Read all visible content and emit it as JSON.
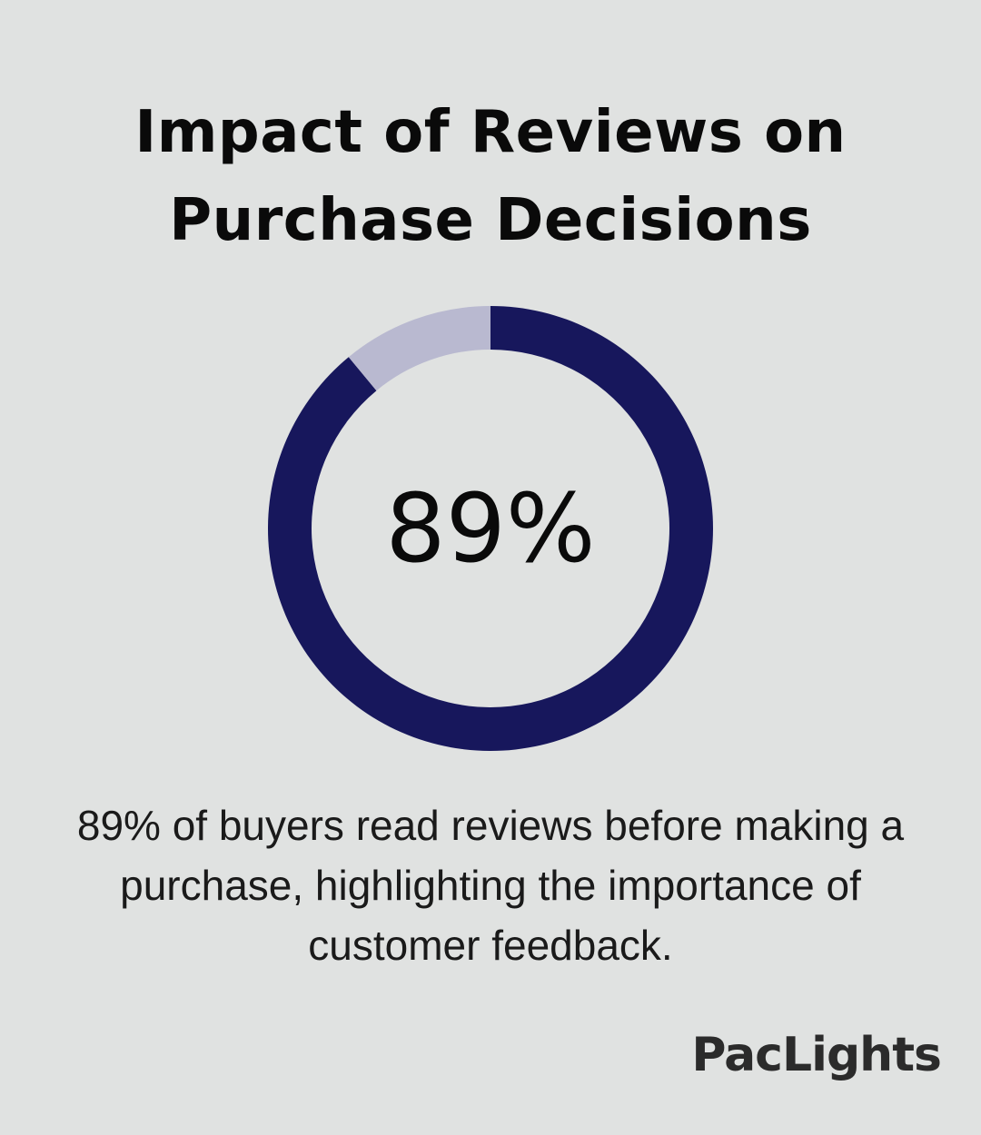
{
  "title": {
    "line1": "Impact of Reviews on",
    "line2": "Purchase Decisions"
  },
  "chart_data": {
    "type": "pie",
    "style": "donut",
    "values": [
      89,
      11
    ],
    "colors": [
      "#17175c",
      "#b9b9d0"
    ],
    "center_label": "89%"
  },
  "caption": {
    "line1": "89% of buyers read reviews before making a",
    "line2": "purchase, highlighting the importance of",
    "line3": "customer feedback."
  },
  "logo": "PacLights"
}
